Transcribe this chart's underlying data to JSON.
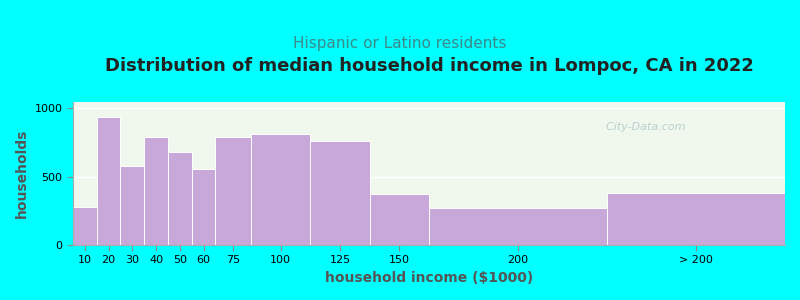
{
  "title": "Distribution of median household income in Lompoc, CA in 2022",
  "subtitle": "Hispanic or Latino residents",
  "xlabel": "household income ($1000)",
  "ylabel": "households",
  "background_outer": "#00FFFF",
  "background_inner": "#f0f8ee",
  "bar_color": "#c8a8d8",
  "bar_edge_color": "#ffffff",
  "categories": [
    "10",
    "20",
    "30",
    "40",
    "50",
    "60",
    "75",
    "100",
    "125",
    "150",
    "200",
    "> 200"
  ],
  "left_edges": [
    0,
    10,
    20,
    30,
    40,
    50,
    60,
    75,
    100,
    125,
    150,
    225
  ],
  "widths": [
    10,
    10,
    10,
    10,
    10,
    10,
    15,
    25,
    25,
    25,
    75,
    75
  ],
  "values": [
    280,
    940,
    580,
    790,
    680,
    560,
    790,
    810,
    760,
    370,
    270,
    380
  ],
  "tick_positions": [
    5,
    15,
    25,
    35,
    45,
    55,
    67.5,
    87.5,
    112.5,
    137.5,
    187.5,
    262.5
  ],
  "xlim": [
    0,
    300
  ],
  "ylim": [
    0,
    1050
  ],
  "yticks": [
    0,
    500,
    1000
  ],
  "title_fontsize": 13,
  "subtitle_fontsize": 11,
  "subtitle_color": "#3a8a8a",
  "axis_label_fontsize": 10,
  "tick_fontsize": 8,
  "watermark_text": "  City-Data.com",
  "watermark_color": "#b0c8c8",
  "title_color": "#222222"
}
